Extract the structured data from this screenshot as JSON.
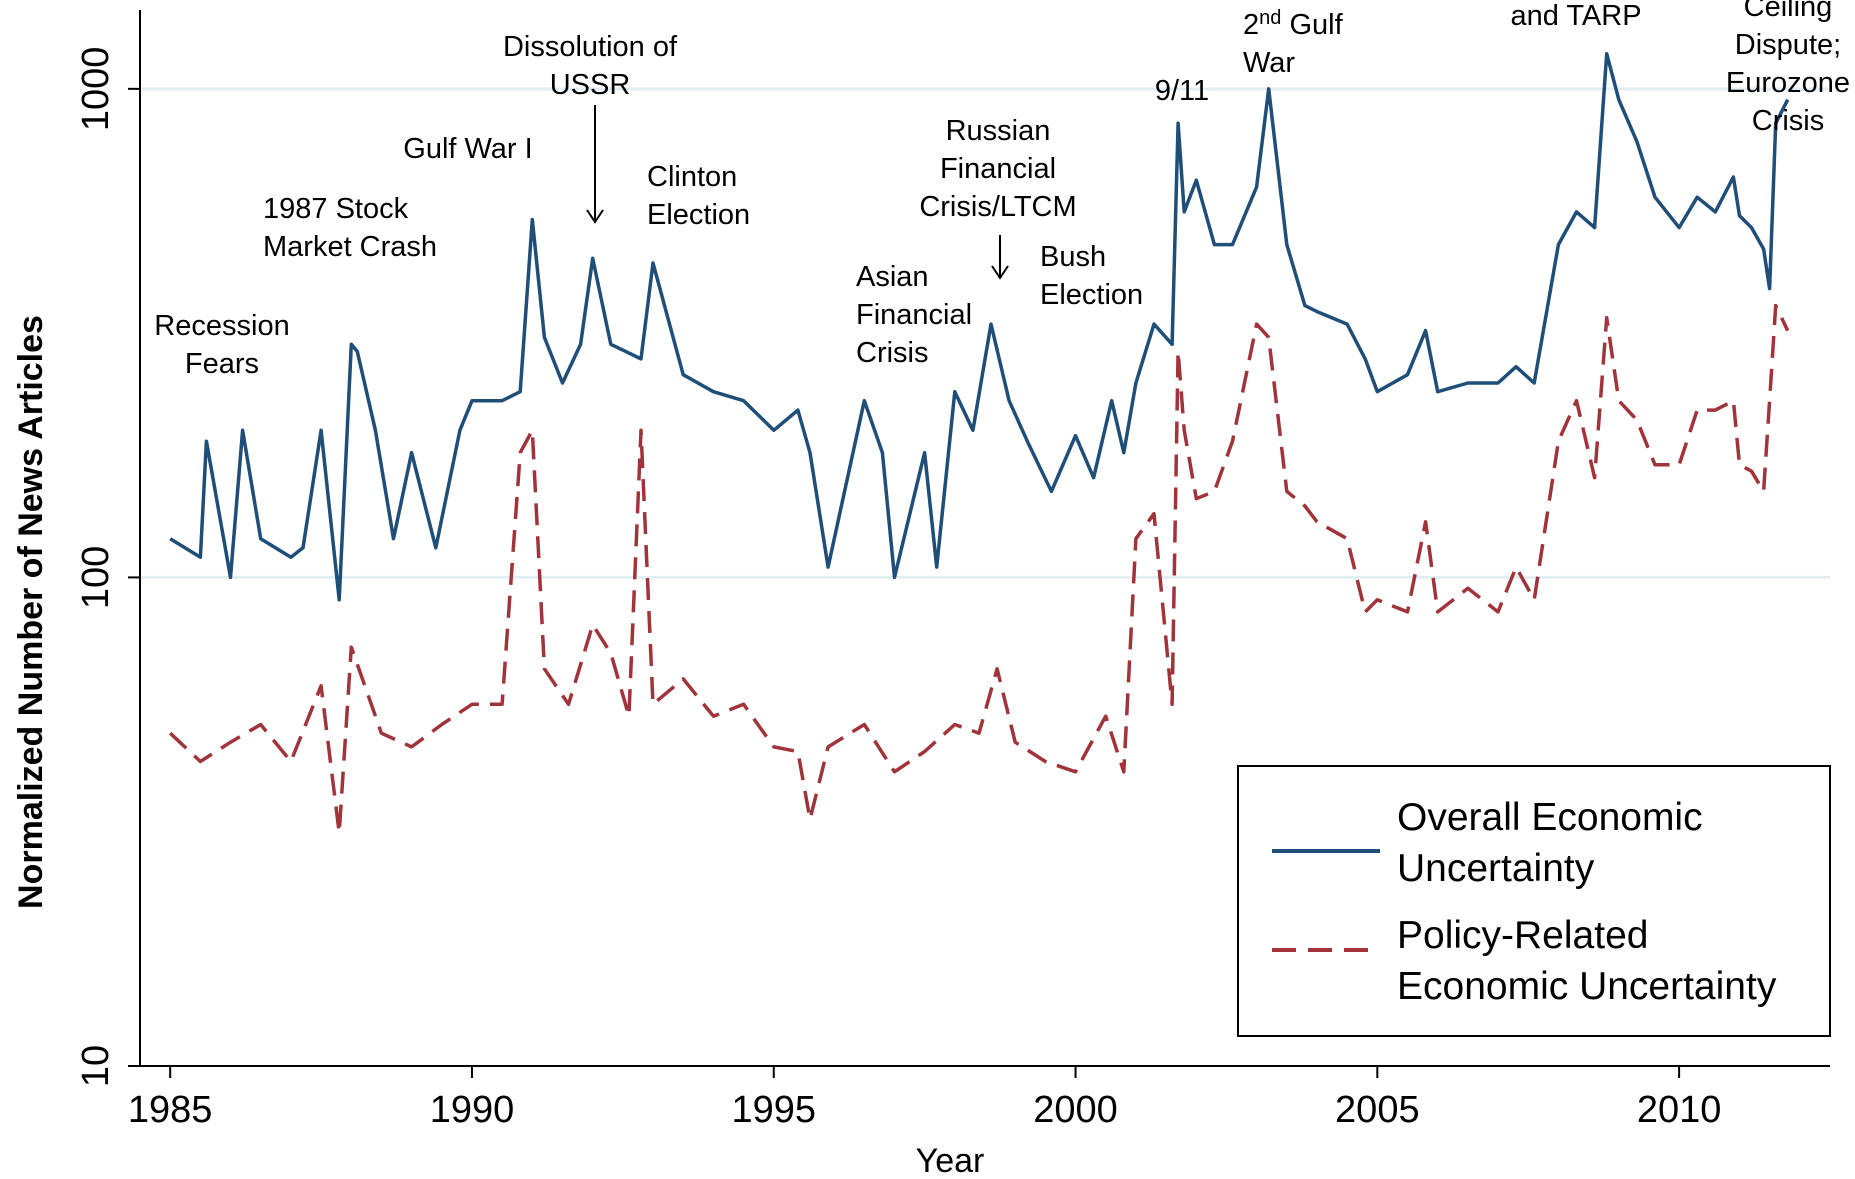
{
  "chart_data": {
    "type": "line",
    "title": "",
    "xlabel": "Year",
    "ylabel": "Normalized Number of News Articles",
    "xlim": [
      1984.5,
      2012.5
    ],
    "ylim": [
      10,
      1450
    ],
    "yscale": "log",
    "x_ticks": [
      1985,
      1990,
      1995,
      2000,
      2005,
      2010
    ],
    "x_tick_labels": [
      "1985",
      "1990",
      "1995",
      "2000",
      "2005",
      "2010"
    ],
    "y_ticks": [
      10,
      100,
      1000
    ],
    "y_tick_labels": [
      "10",
      "100",
      "1000"
    ],
    "grid": "horizontal lines at 100 and 1000",
    "legend": "bottom-right",
    "colors": {
      "overall": "#1f4e79",
      "policy": "#a0343a",
      "grid": "#e3eef3"
    },
    "series": [
      {
        "name": "Overall Economic Uncertainty",
        "style": "solid",
        "x": [
          1985.0,
          1985.5,
          1985.6,
          1986.0,
          1986.2,
          1986.5,
          1987.0,
          1987.2,
          1987.5,
          1987.8,
          1988.0,
          1988.1,
          1988.4,
          1988.7,
          1989.0,
          1989.4,
          1989.8,
          1990.0,
          1990.5,
          1990.8,
          1991.0,
          1991.2,
          1991.5,
          1991.8,
          1992.0,
          1992.3,
          1992.8,
          1993.0,
          1993.5,
          1994.0,
          1994.5,
          1995.0,
          1995.4,
          1995.6,
          1995.9,
          1996.5,
          1996.8,
          1997.0,
          1997.5,
          1997.7,
          1998.0,
          1998.3,
          1998.6,
          1998.9,
          1999.2,
          1999.6,
          2000.0,
          2000.3,
          2000.6,
          2000.8,
          2001.0,
          2001.3,
          2001.6,
          2001.7,
          2001.8,
          2002.0,
          2002.3,
          2002.6,
          2003.0,
          2003.2,
          2003.5,
          2003.8,
          2004.0,
          2004.5,
          2004.8,
          2005.0,
          2005.5,
          2005.8,
          2006.0,
          2006.5,
          2007.0,
          2007.3,
          2007.6,
          2008.0,
          2008.3,
          2008.6,
          2008.8,
          2009.0,
          2009.3,
          2009.6,
          2010.0,
          2010.3,
          2010.6,
          2010.9,
          2011.0,
          2011.2,
          2011.4,
          2011.5,
          2011.6,
          2011.8
        ],
        "values": [
          120,
          110,
          190,
          100,
          200,
          120,
          110,
          115,
          200,
          90,
          300,
          290,
          200,
          120,
          180,
          115,
          200,
          230,
          230,
          240,
          540,
          310,
          250,
          300,
          450,
          300,
          280,
          440,
          260,
          240,
          230,
          200,
          220,
          180,
          105,
          230,
          180,
          100,
          180,
          105,
          240,
          200,
          330,
          230,
          190,
          150,
          195,
          160,
          230,
          180,
          250,
          330,
          300,
          850,
          560,
          650,
          480,
          480,
          630,
          1000,
          480,
          360,
          350,
          330,
          280,
          240,
          260,
          320,
          240,
          250,
          250,
          270,
          250,
          480,
          560,
          520,
          1180,
          950,
          780,
          600,
          520,
          600,
          560,
          660,
          550,
          520,
          470,
          390,
          850,
          950
        ]
      },
      {
        "name": "Policy-Related Economic Uncertainty",
        "style": "dashed",
        "x": [
          1985.0,
          1985.5,
          1986.0,
          1986.5,
          1987.0,
          1987.5,
          1987.8,
          1988.0,
          1988.5,
          1989.0,
          1989.5,
          1990.0,
          1990.5,
          1990.8,
          1991.0,
          1991.2,
          1991.6,
          1992.0,
          1992.3,
          1992.6,
          1992.8,
          1993.0,
          1993.5,
          1994.0,
          1994.5,
          1995.0,
          1995.4,
          1995.6,
          1995.9,
          1996.5,
          1997.0,
          1997.5,
          1998.0,
          1998.4,
          1998.7,
          1999.0,
          1999.5,
          2000.0,
          2000.5,
          2000.8,
          2001.0,
          2001.3,
          2001.6,
          2001.7,
          2001.8,
          2002.0,
          2002.3,
          2002.6,
          2003.0,
          2003.2,
          2003.5,
          2003.8,
          2004.0,
          2004.5,
          2004.8,
          2005.0,
          2005.5,
          2005.8,
          2006.0,
          2006.5,
          2007.0,
          2007.3,
          2007.6,
          2008.0,
          2008.3,
          2008.6,
          2008.8,
          2009.0,
          2009.3,
          2009.6,
          2010.0,
          2010.3,
          2010.6,
          2010.9,
          2011.0,
          2011.2,
          2011.4,
          2011.5,
          2011.6,
          2011.8
        ],
        "values": [
          48,
          42,
          46,
          50,
          42,
          60,
          30,
          72,
          48,
          45,
          50,
          55,
          55,
          180,
          200,
          65,
          55,
          80,
          70,
          52,
          200,
          55,
          62,
          52,
          55,
          45,
          44,
          32,
          45,
          50,
          40,
          44,
          50,
          48,
          65,
          46,
          42,
          40,
          52,
          40,
          120,
          135,
          55,
          290,
          200,
          145,
          150,
          190,
          330,
          310,
          150,
          140,
          130,
          120,
          85,
          90,
          85,
          130,
          85,
          95,
          85,
          105,
          90,
          190,
          230,
          160,
          340,
          230,
          210,
          170,
          170,
          220,
          220,
          230,
          170,
          165,
          150,
          230,
          360,
          320
        ]
      }
    ],
    "annotations": [
      {
        "lines": [
          "Recession",
          "Fears"
        ]
      },
      {
        "lines": [
          "1987 Stock",
          "Market Crash"
        ]
      },
      {
        "lines": [
          "Gulf War I"
        ]
      },
      {
        "lines": [
          "Dissolution of",
          "USSR"
        ]
      },
      {
        "lines": [
          "Clinton",
          "Election"
        ]
      },
      {
        "lines": [
          "Asian",
          "Financial",
          "Crisis"
        ]
      },
      {
        "lines": [
          "Russian",
          "Financial",
          "Crisis/LTCM"
        ]
      },
      {
        "lines": [
          "Bush",
          "Election"
        ]
      },
      {
        "lines": [
          "9/11"
        ]
      },
      {
        "lines": [
          "2nd Gulf",
          "War"
        ]
      },
      {
        "lines": [
          "and TARP"
        ]
      },
      {
        "lines": [
          "Ceiling",
          "Dispute;",
          "Eurozone",
          "Crisis"
        ]
      }
    ]
  },
  "legend": {
    "overall_lines": [
      "Overall Economic",
      "Uncertainty"
    ],
    "policy_lines": [
      "Policy-Related",
      "Economic Uncertainty"
    ]
  }
}
